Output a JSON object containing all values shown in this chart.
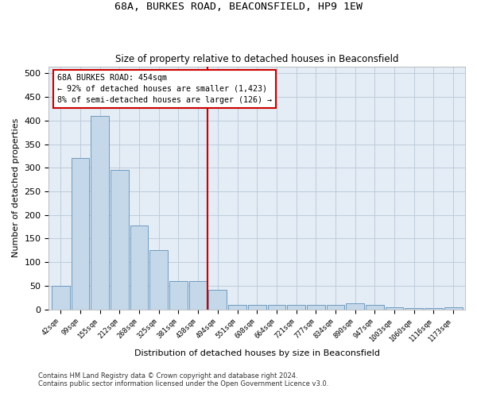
{
  "title": "68A, BURKES ROAD, BEACONSFIELD, HP9 1EW",
  "subtitle": "Size of property relative to detached houses in Beaconsfield",
  "xlabel": "Distribution of detached houses by size in Beaconsfield",
  "ylabel": "Number of detached properties",
  "footnote1": "Contains HM Land Registry data © Crown copyright and database right 2024.",
  "footnote2": "Contains public sector information licensed under the Open Government Licence v3.0.",
  "categories": [
    "42sqm",
    "99sqm",
    "155sqm",
    "212sqm",
    "268sqm",
    "325sqm",
    "381sqm",
    "438sqm",
    "494sqm",
    "551sqm",
    "608sqm",
    "664sqm",
    "721sqm",
    "777sqm",
    "834sqm",
    "890sqm",
    "947sqm",
    "1003sqm",
    "1060sqm",
    "1116sqm",
    "1173sqm"
  ],
  "values": [
    50,
    320,
    410,
    295,
    178,
    125,
    60,
    60,
    42,
    10,
    10,
    10,
    10,
    10,
    10,
    13,
    10,
    5,
    3,
    2,
    5
  ],
  "bar_color": "#c5d8ea",
  "bar_edge_color": "#6090b8",
  "grid_color": "#b8c8d8",
  "background_color": "#e4ecf5",
  "annotation_box_text1": "68A BURKES ROAD: 454sqm",
  "annotation_box_text2": "← 92% of detached houses are smaller (1,423)",
  "annotation_box_text3": "8% of semi-detached houses are larger (126) →",
  "red_line_x": 7.5,
  "red_line_color": "#cc0000",
  "ylim": [
    0,
    515
  ],
  "yticks": [
    0,
    50,
    100,
    150,
    200,
    250,
    300,
    350,
    400,
    450,
    500
  ],
  "figwidth": 6.0,
  "figheight": 5.0,
  "dpi": 100
}
